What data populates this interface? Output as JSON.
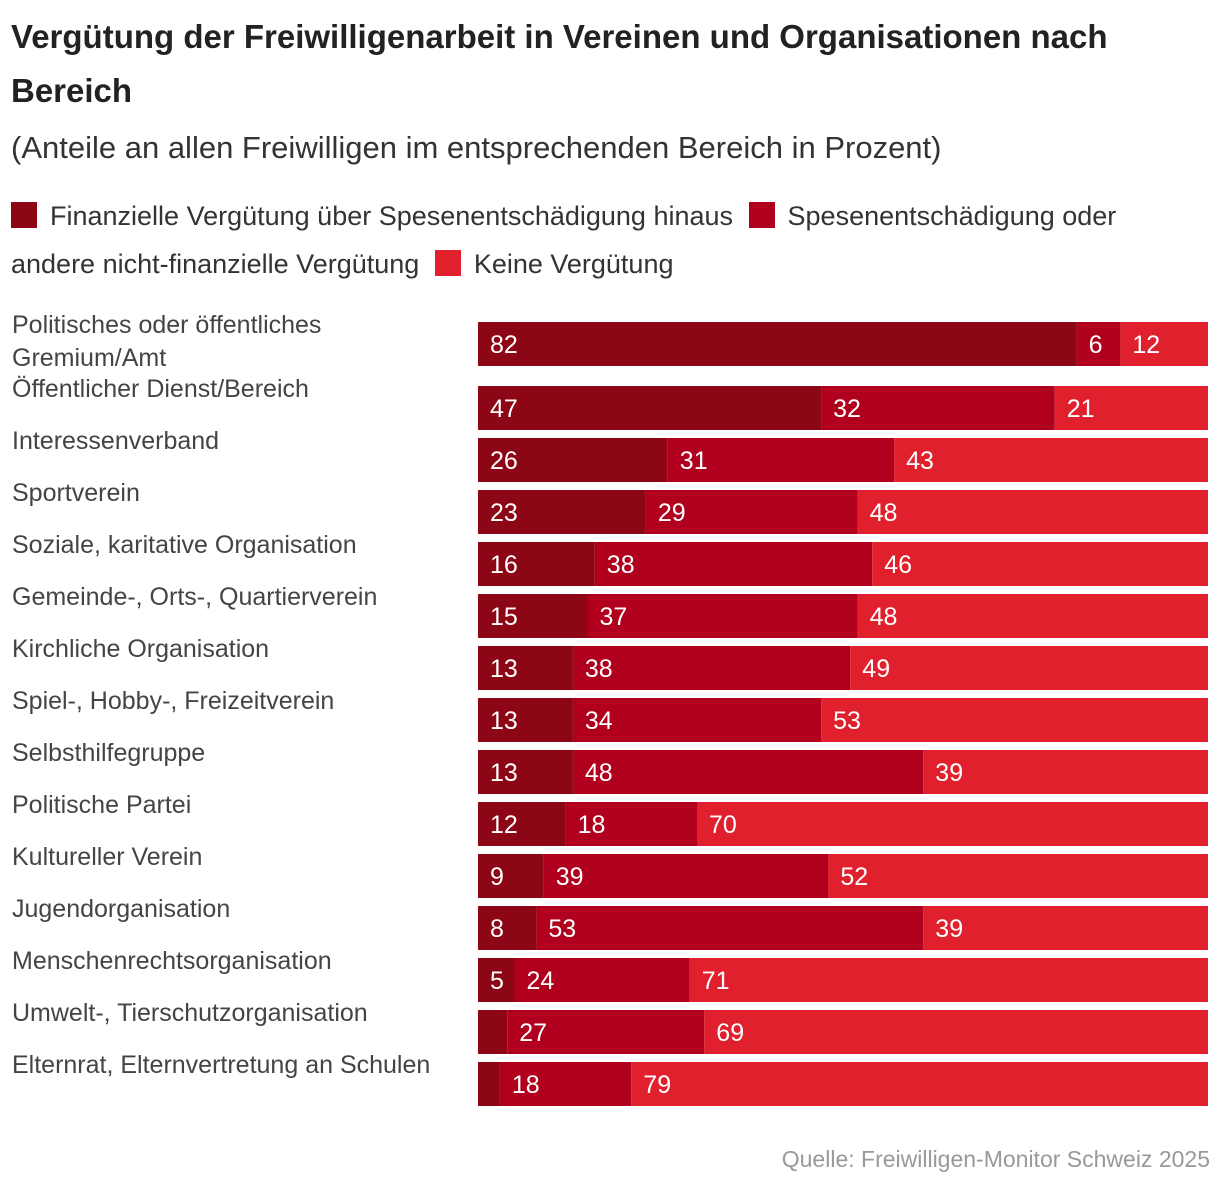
{
  "colors": {
    "financial": "#8c0615",
    "expenses": "#b0001d",
    "none": "#e1202d",
    "label_text": "#ffffff",
    "category_text": "#444444"
  },
  "chart_data": {
    "type": "bar",
    "orientation": "horizontal",
    "stacked": true,
    "title": "Vergütung der Freiwilligenarbeit in Vereinen und Organisationen nach Bereich",
    "subtitle": "(Anteile an allen Freiwilligen im entsprechenden Bereich in Prozent)",
    "xlim": [
      0,
      100
    ],
    "grid": false,
    "legend_position": "top",
    "source": "Quelle: Freiwilligen-Monitor Schweiz 2025",
    "categories": [
      "Politisches oder öffentliches Gremium/Amt",
      "Öffentlicher Dienst/Bereich",
      "Interessenverband",
      "Sportverein",
      "Soziale, karitative Organisation",
      "Gemeinde-, Orts-, Quartierverein",
      "Kirchliche Organisation",
      "Spiel-, Hobby-, Freizeitverein",
      "Selbsthilfegruppe",
      "Politische Partei",
      "Kultureller Verein",
      "Jugendorganisation",
      "Menschenrechtsorganisation",
      "Umwelt-, Tierschutzorganisation",
      "Elternrat, Elternvertretung an Schulen"
    ],
    "category_lines": [
      [
        "Politisches oder öffentliches",
        "Gremium/Amt"
      ],
      [
        "Öffentlicher Dienst/Bereich"
      ],
      [
        "Interessenverband"
      ],
      [
        "Sportverein"
      ],
      [
        "Soziale, karitative Organisation"
      ],
      [
        "Gemeinde-, Orts-, Quartierverein"
      ],
      [
        "Kirchliche Organisation"
      ],
      [
        "Spiel-, Hobby-, Freizeitverein"
      ],
      [
        "Selbsthilfegruppe"
      ],
      [
        "Politische Partei"
      ],
      [
        "Kultureller Verein"
      ],
      [
        "Jugendorganisation"
      ],
      [
        "Menschenrechtsorganisation"
      ],
      [
        "Umwelt-, Tierschutzorganisation"
      ],
      [
        "Elternrat, Elternvertretung an Schulen"
      ]
    ],
    "series": [
      {
        "name": "Finanzielle Vergütung über Spesenentschädigung hinaus",
        "color_key": "financial",
        "values": [
          82,
          47,
          26,
          23,
          16,
          15,
          13,
          13,
          13,
          12,
          9,
          8,
          5,
          4,
          3
        ],
        "labels": [
          "82",
          "47",
          "26",
          "23",
          "16",
          "15",
          "13",
          "13",
          "13",
          "12",
          "9",
          "8",
          "5",
          "",
          ""
        ]
      },
      {
        "name": "Spesenentschädigung oder andere nicht-finanzielle Vergütung",
        "color_key": "expenses",
        "values": [
          6,
          32,
          31,
          29,
          38,
          37,
          38,
          34,
          48,
          18,
          39,
          53,
          24,
          27,
          18
        ],
        "labels": [
          "6",
          "32",
          "31",
          "29",
          "38",
          "37",
          "38",
          "34",
          "48",
          "18",
          "39",
          "53",
          "24",
          "27",
          "18"
        ]
      },
      {
        "name": "Keine Vergütung",
        "color_key": "none",
        "values": [
          12,
          21,
          43,
          48,
          46,
          48,
          49,
          53,
          39,
          70,
          52,
          39,
          71,
          69,
          79
        ],
        "labels": [
          "12",
          "21",
          "43",
          "48",
          "46",
          "48",
          "49",
          "53",
          "39",
          "70",
          "52",
          "39",
          "71",
          "69",
          "79"
        ]
      }
    ]
  }
}
